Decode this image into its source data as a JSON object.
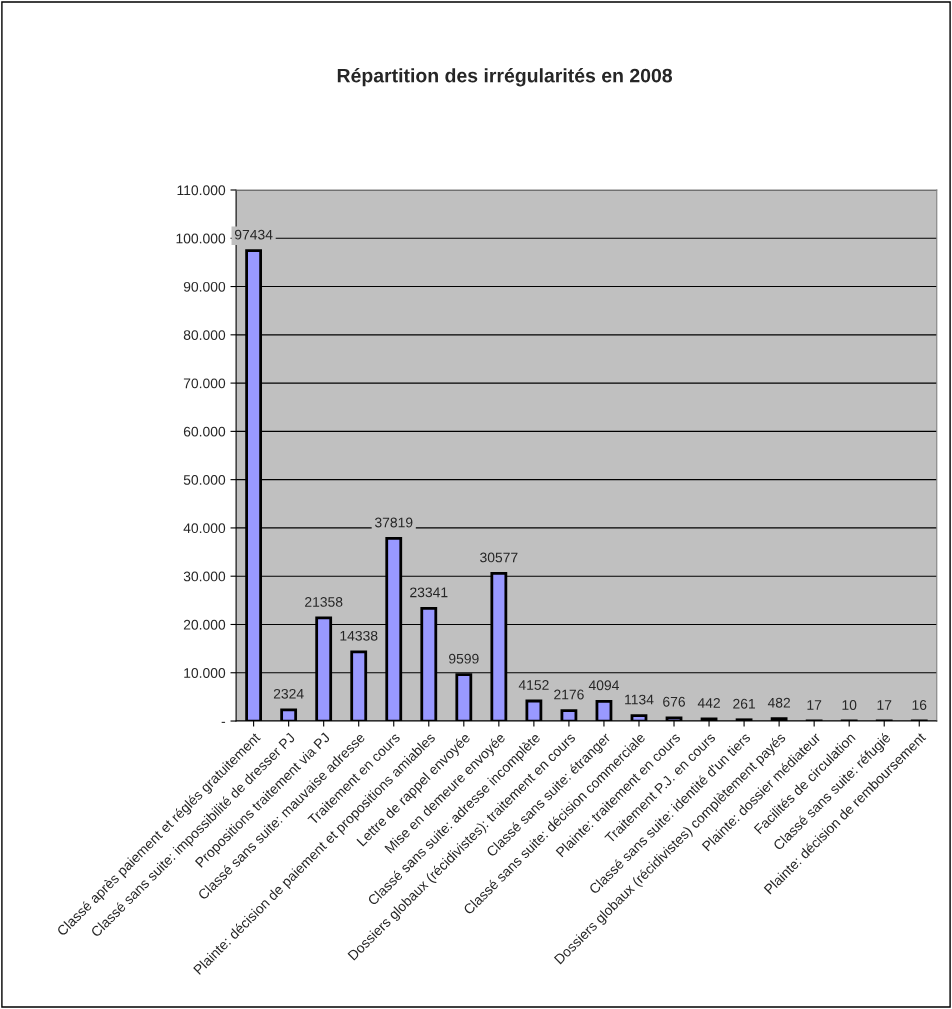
{
  "chart_data": {
    "type": "bar",
    "title": "Répartition des irrégularités en 2008",
    "categories": [
      "Classé après paiement et réglés gratuitement",
      "Classé sans suite: impossibilité de dresser PJ",
      "Propositions traitement via PJ",
      "Classé sans suite: mauvaise adresse",
      "Traitement en cours",
      "Plainte: décision de paiement et propositions amiables",
      "Lettre de rappel envoyée",
      "Mise en demeure envoyée",
      "Classé sans suite: adresse incomplète",
      "Dossiers globaux (récidivistes): traitement en cours",
      "Classé sans suite: étranger",
      "Classé sans suite: décision commerciale",
      "Plainte: traitement en cours",
      "Traitement P.J. en cours",
      "Classé sans suite: identité d'un tiers",
      "Dossiers globaux (récidivistes) complètement payés",
      "Plainte: dossier médiateur",
      "Facilités de circulation",
      "Classé sans suite: réfugié",
      "Plainte: décision de remboursement"
    ],
    "values": [
      97434,
      2324,
      21358,
      14338,
      37819,
      23341,
      9599,
      30577,
      4152,
      2176,
      4094,
      1134,
      676,
      442,
      261,
      482,
      17,
      10,
      17,
      16
    ],
    "color": "#9999ff",
    "data_labels": true,
    "grid": "y",
    "ylim": [
      0,
      110000
    ],
    "yticks": [
      {
        "value": 0,
        "label": "-"
      },
      {
        "value": 10000,
        "label": "10.000"
      },
      {
        "value": 20000,
        "label": "20.000"
      },
      {
        "value": 30000,
        "label": "30.000"
      },
      {
        "value": 40000,
        "label": "40.000"
      },
      {
        "value": 50000,
        "label": "50.000"
      },
      {
        "value": 60000,
        "label": "60.000"
      },
      {
        "value": 70000,
        "label": "70.000"
      },
      {
        "value": 80000,
        "label": "80.000"
      },
      {
        "value": 90000,
        "label": "90.000"
      },
      {
        "value": 100000,
        "label": "100.000"
      },
      {
        "value": 110000,
        "label": "110.000"
      }
    ]
  }
}
